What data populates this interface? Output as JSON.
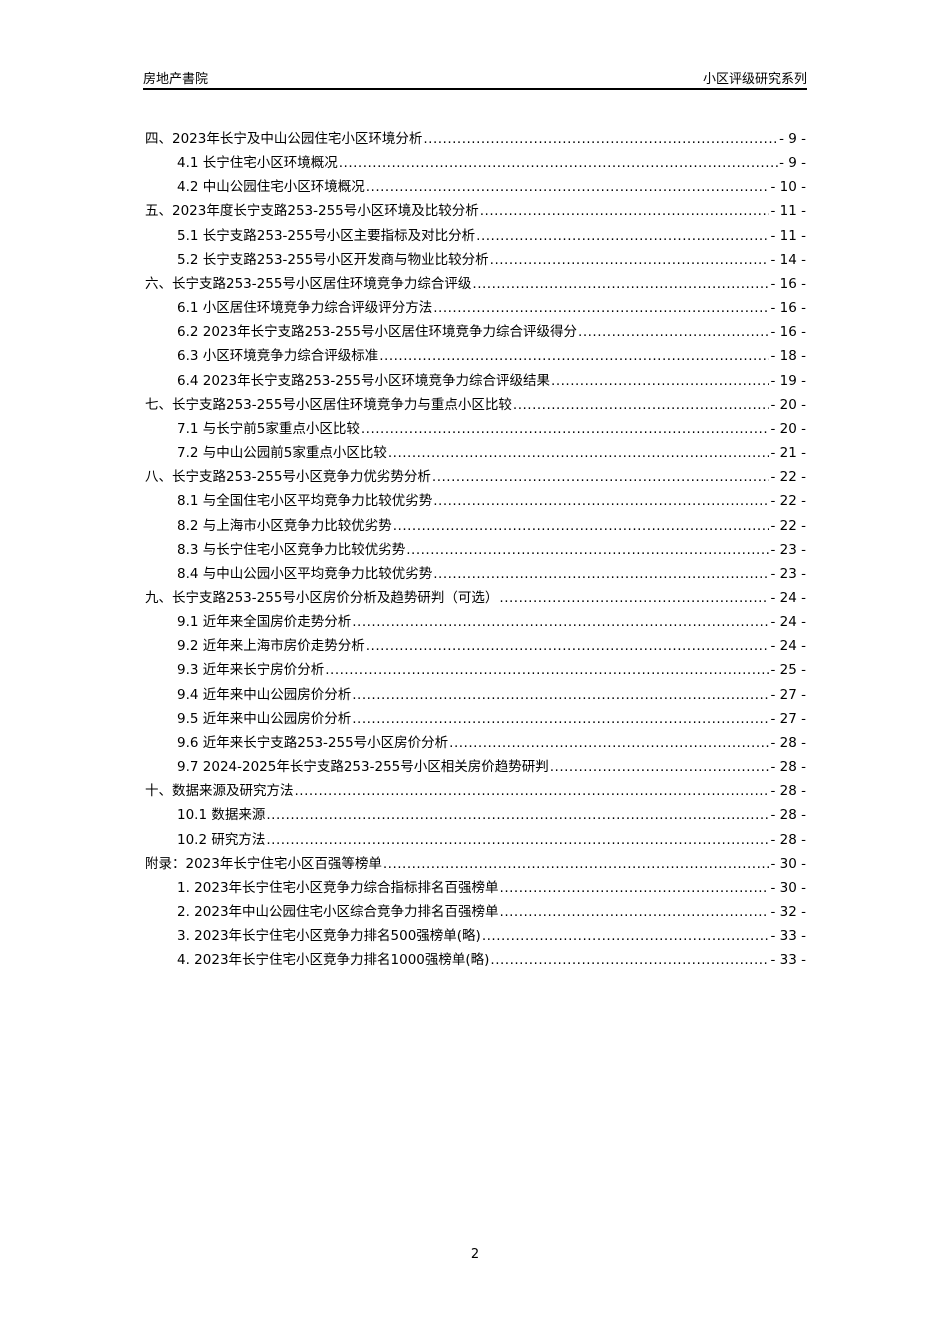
{
  "header": {
    "left": "房地产書院",
    "right": "小区评级研究系列"
  },
  "toc": [
    {
      "level": 1,
      "title": "四、2023年长宁及中山公园住宅小区环境分析",
      "page": "- 9 -"
    },
    {
      "level": 2,
      "title": "4.1 长宁住宅小区环境概况",
      "page": "- 9 -"
    },
    {
      "level": 2,
      "title": "4.2 中山公园住宅小区环境概况",
      "page": "- 10 -"
    },
    {
      "level": 1,
      "title": "五、2023年度长宁支路253-255号小区环境及比较分析",
      "page": "- 11 -"
    },
    {
      "level": 2,
      "title": "5.1 长宁支路253-255号小区主要指标及对比分析",
      "page": "- 11 -"
    },
    {
      "level": 2,
      "title": "5.2 长宁支路253-255号小区开发商与物业比较分析",
      "page": "- 14 -"
    },
    {
      "level": 1,
      "title": "六、长宁支路253-255号小区居住环境竞争力综合评级",
      "page": "- 16 -"
    },
    {
      "level": 2,
      "title": "6.1 小区居住环境竞争力综合评级评分方法",
      "page": "- 16 -"
    },
    {
      "level": 2,
      "title": "6.2 2023年长宁支路253-255号小区居住环境竞争力综合评级得分",
      "page": "- 16 -"
    },
    {
      "level": 2,
      "title": "6.3 小区环境竞争力综合评级标准",
      "page": "- 18 -"
    },
    {
      "level": 2,
      "title": "6.4 2023年长宁支路253-255号小区环境竞争力综合评级结果",
      "page": "- 19 -"
    },
    {
      "level": 1,
      "title": "七、长宁支路253-255号小区居住环境竞争力与重点小区比较",
      "page": "- 20 -"
    },
    {
      "level": 2,
      "title": "7.1 与长宁前5家重点小区比较",
      "page": "- 20 -"
    },
    {
      "level": 2,
      "title": "7.2 与中山公园前5家重点小区比较",
      "page": "- 21 -"
    },
    {
      "level": 1,
      "title": "八、长宁支路253-255号小区竞争力优劣势分析",
      "page": "- 22 -"
    },
    {
      "level": 2,
      "title": "8.1 与全国住宅小区平均竞争力比较优劣势",
      "page": "- 22 -"
    },
    {
      "level": 2,
      "title": "8.2 与上海市小区竞争力比较优劣势",
      "page": "- 22 -"
    },
    {
      "level": 2,
      "title": "8.3 与长宁住宅小区竞争力比较优劣势",
      "page": "- 23 -"
    },
    {
      "level": 2,
      "title": "8.4 与中山公园小区平均竞争力比较优劣势",
      "page": "- 23 -"
    },
    {
      "level": 1,
      "title": "九、长宁支路253-255号小区房价分析及趋势研判（可选）",
      "page": "- 24 -"
    },
    {
      "level": 2,
      "title": "9.1 近年来全国房价走势分析",
      "page": "- 24 -"
    },
    {
      "level": 2,
      "title": "9.2 近年来上海市房价走势分析",
      "page": "- 24 -"
    },
    {
      "level": 2,
      "title": "9.3 近年来长宁房价分析",
      "page": "- 25 -"
    },
    {
      "level": 2,
      "title": "9.4 近年来中山公园房价分析",
      "page": "- 27 -"
    },
    {
      "level": 2,
      "title": "9.5 近年来中山公园房价分析",
      "page": "- 27 -"
    },
    {
      "level": 2,
      "title": "9.6 近年来长宁支路253-255号小区房价分析",
      "page": "- 28 -"
    },
    {
      "level": 2,
      "title": "9.7 2024-2025年长宁支路253-255号小区相关房价趋势研判",
      "page": "- 28 -"
    },
    {
      "level": 1,
      "title": "十、数据来源及研究方法",
      "page": "- 28 -"
    },
    {
      "level": 2,
      "title": "10.1 数据来源",
      "page": "- 28 -"
    },
    {
      "level": 2,
      "title": "10.2 研究方法",
      "page": "- 28 -"
    },
    {
      "level": 1,
      "title": "附录：2023年长宁住宅小区百强等榜单",
      "page": "- 30 -"
    },
    {
      "level": 2,
      "title": "1. 2023年长宁住宅小区竞争力综合指标排名百强榜单",
      "page": "- 30 -"
    },
    {
      "level": 2,
      "title": "2. 2023年中山公园住宅小区综合竞争力排名百强榜单",
      "page": "- 32 -"
    },
    {
      "level": 2,
      "title": "3. 2023年长宁住宅小区竞争力排名500强榜单(略)",
      "page": "- 33 -"
    },
    {
      "level": 2,
      "title": "4. 2023年长宁住宅小区竞争力排名1000强榜单(略)",
      "page": "- 33 -"
    }
  ],
  "footer": {
    "page_number": "2"
  }
}
